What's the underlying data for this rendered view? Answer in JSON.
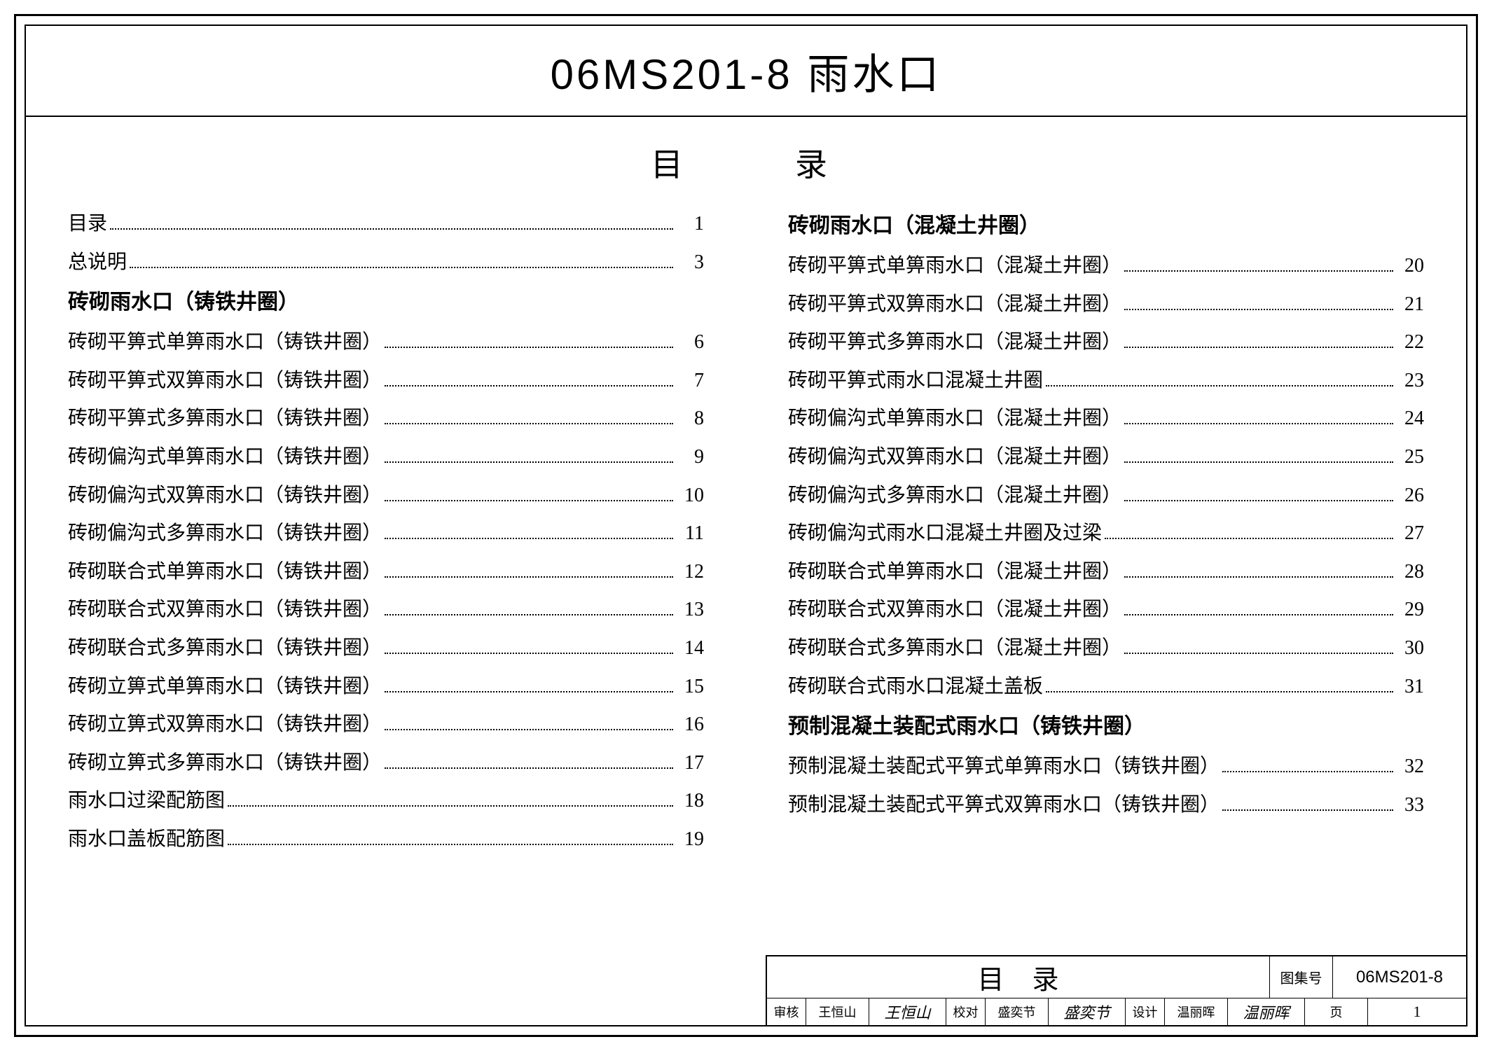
{
  "colors": {
    "border": "#000000",
    "background": "#ffffff",
    "text": "#000000"
  },
  "title": "06MS201-8  雨水口",
  "toc_header_left": "目",
  "toc_header_right": "录",
  "left_column": [
    {
      "type": "entry",
      "label": "目录",
      "page": "1"
    },
    {
      "type": "entry",
      "label": "总说明",
      "page": "3"
    },
    {
      "type": "section",
      "label": "砖砌雨水口（铸铁井圈）"
    },
    {
      "type": "entry",
      "label": "砖砌平箅式单箅雨水口（铸铁井圈）",
      "page": "6"
    },
    {
      "type": "entry",
      "label": "砖砌平箅式双箅雨水口（铸铁井圈）",
      "page": "7"
    },
    {
      "type": "entry",
      "label": "砖砌平箅式多箅雨水口（铸铁井圈）",
      "page": "8"
    },
    {
      "type": "entry",
      "label": "砖砌偏沟式单箅雨水口（铸铁井圈）",
      "page": "9"
    },
    {
      "type": "entry",
      "label": "砖砌偏沟式双箅雨水口（铸铁井圈）",
      "page": "10"
    },
    {
      "type": "entry",
      "label": "砖砌偏沟式多箅雨水口（铸铁井圈）",
      "page": "11"
    },
    {
      "type": "entry",
      "label": "砖砌联合式单箅雨水口（铸铁井圈）",
      "page": "12"
    },
    {
      "type": "entry",
      "label": "砖砌联合式双箅雨水口（铸铁井圈）",
      "page": "13"
    },
    {
      "type": "entry",
      "label": "砖砌联合式多箅雨水口（铸铁井圈）",
      "page": "14"
    },
    {
      "type": "entry",
      "label": "砖砌立箅式单箅雨水口（铸铁井圈）",
      "page": "15"
    },
    {
      "type": "entry",
      "label": "砖砌立箅式双箅雨水口（铸铁井圈）",
      "page": "16"
    },
    {
      "type": "entry",
      "label": "砖砌立箅式多箅雨水口（铸铁井圈）",
      "page": "17"
    },
    {
      "type": "entry",
      "label": "雨水口过梁配筋图",
      "page": "18"
    },
    {
      "type": "entry",
      "label": "雨水口盖板配筋图",
      "page": "19"
    }
  ],
  "right_column": [
    {
      "type": "section",
      "label": "砖砌雨水口（混凝土井圈）"
    },
    {
      "type": "entry",
      "label": "砖砌平箅式单箅雨水口（混凝土井圈）",
      "page": "20"
    },
    {
      "type": "entry",
      "label": "砖砌平箅式双箅雨水口（混凝土井圈）",
      "page": "21"
    },
    {
      "type": "entry",
      "label": "砖砌平箅式多箅雨水口（混凝土井圈）",
      "page": "22"
    },
    {
      "type": "entry",
      "label": "砖砌平箅式雨水口混凝土井圈",
      "page": "23"
    },
    {
      "type": "entry",
      "label": "砖砌偏沟式单箅雨水口（混凝土井圈）",
      "page": "24"
    },
    {
      "type": "entry",
      "label": "砖砌偏沟式双箅雨水口（混凝土井圈）",
      "page": "25"
    },
    {
      "type": "entry",
      "label": "砖砌偏沟式多箅雨水口（混凝土井圈）",
      "page": "26"
    },
    {
      "type": "entry",
      "label": "砖砌偏沟式雨水口混凝土井圈及过梁",
      "page": "27"
    },
    {
      "type": "entry",
      "label": "砖砌联合式单箅雨水口（混凝土井圈）",
      "page": "28"
    },
    {
      "type": "entry",
      "label": "砖砌联合式双箅雨水口（混凝土井圈）",
      "page": "29"
    },
    {
      "type": "entry",
      "label": "砖砌联合式多箅雨水口（混凝土井圈）",
      "page": "30"
    },
    {
      "type": "entry",
      "label": "砖砌联合式雨水口混凝土盖板",
      "page": "31"
    },
    {
      "type": "section",
      "label": "预制混凝土装配式雨水口（铸铁井圈）"
    },
    {
      "type": "entry",
      "label": "预制混凝土装配式平箅式单箅雨水口（铸铁井圈）",
      "page": "32"
    },
    {
      "type": "entry",
      "label": "预制混凝土装配式平箅式双箅雨水口（铸铁井圈）",
      "page": "33"
    }
  ],
  "footer": {
    "block_title": "目录",
    "code_label": "图集号",
    "code_value": "06MS201-8",
    "roles": [
      {
        "role": "审核",
        "name": "王恒山",
        "sig": "王恒山"
      },
      {
        "role": "校对",
        "name": "盛奕节",
        "sig": "盛奕节"
      },
      {
        "role": "设计",
        "name": "温丽晖",
        "sig": "温丽晖"
      }
    ],
    "page_label": "页",
    "page_value": "1"
  }
}
